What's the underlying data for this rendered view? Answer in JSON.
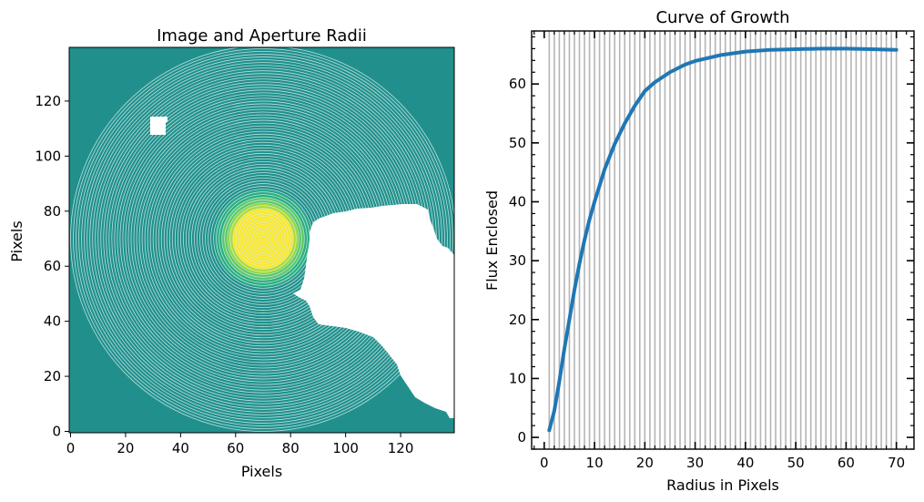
{
  "chart_data": [
    {
      "type": "heatmap",
      "title": "Image and Aperture Radii",
      "xlabel": "Pixels",
      "ylabel": "Pixels",
      "xlim": [
        -0.5,
        139.5
      ],
      "ylim": [
        -0.5,
        139.5
      ],
      "xticks": [
        0,
        20,
        40,
        60,
        80,
        100,
        120
      ],
      "yticks": [
        0,
        20,
        40,
        60,
        80,
        100,
        120
      ],
      "background_value_color": "#21908d",
      "masked_color": "#ffffff",
      "source_center": [
        70,
        70
      ],
      "source_core_radius": 11,
      "aperture_center": [
        70,
        70
      ],
      "aperture_radii": [
        1,
        2,
        3,
        4,
        5,
        6,
        7,
        8,
        9,
        10,
        11,
        12,
        13,
        14,
        15,
        16,
        17,
        18,
        19,
        20,
        21,
        22,
        23,
        24,
        25,
        26,
        27,
        28,
        29,
        30,
        31,
        32,
        33,
        34,
        35,
        36,
        37,
        38,
        39,
        40,
        41,
        42,
        43,
        44,
        45,
        46,
        47,
        48,
        49,
        50,
        51,
        52,
        53,
        54,
        55,
        56,
        57,
        58,
        59,
        60,
        61,
        62,
        63,
        64,
        65,
        66,
        67,
        68,
        69,
        70
      ],
      "aperture_color": "#d6f0ea",
      "colormap": [
        "#21908d",
        "#27ad81",
        "#5cc863",
        "#aadc32",
        "#fde725"
      ]
    },
    {
      "type": "line",
      "title": "Curve of Growth",
      "xlabel": "Radius in Pixels",
      "ylabel": "Flux Enclosed",
      "xlim": [
        -2.5,
        73.5
      ],
      "ylim": [
        -2,
        69
      ],
      "xticks": [
        0,
        10,
        20,
        30,
        40,
        50,
        60,
        70
      ],
      "yticks": [
        0,
        10,
        20,
        30,
        40,
        50,
        60
      ],
      "vlines": [
        1,
        2,
        3,
        4,
        5,
        6,
        7,
        8,
        9,
        10,
        11,
        12,
        13,
        14,
        15,
        16,
        17,
        18,
        19,
        20,
        21,
        22,
        23,
        24,
        25,
        26,
        27,
        28,
        29,
        30,
        31,
        32,
        33,
        34,
        35,
        36,
        37,
        38,
        39,
        40,
        41,
        42,
        43,
        44,
        45,
        46,
        47,
        48,
        49,
        50,
        51,
        52,
        53,
        54,
        55,
        56,
        57,
        58,
        59,
        60,
        61,
        62,
        63,
        64,
        65,
        66,
        67,
        68,
        69,
        70
      ],
      "vline_color": "#b5b5b5",
      "series": [
        {
          "color": "#1f77b4",
          "x": [
            1,
            2,
            3,
            4,
            5,
            6,
            7,
            8,
            9,
            10,
            12,
            14,
            16,
            18,
            20,
            22,
            25,
            28,
            30,
            35,
            40,
            45,
            50,
            55,
            60,
            65,
            70
          ],
          "y": [
            1.2,
            4.5,
            9.5,
            15,
            20,
            25,
            29.5,
            33.5,
            37,
            40,
            45.5,
            49.8,
            53.3,
            56.3,
            58.8,
            60.3,
            62.0,
            63.3,
            63.9,
            64.9,
            65.5,
            65.8,
            65.9,
            66.0,
            66.0,
            65.9,
            65.8
          ]
        }
      ]
    }
  ]
}
